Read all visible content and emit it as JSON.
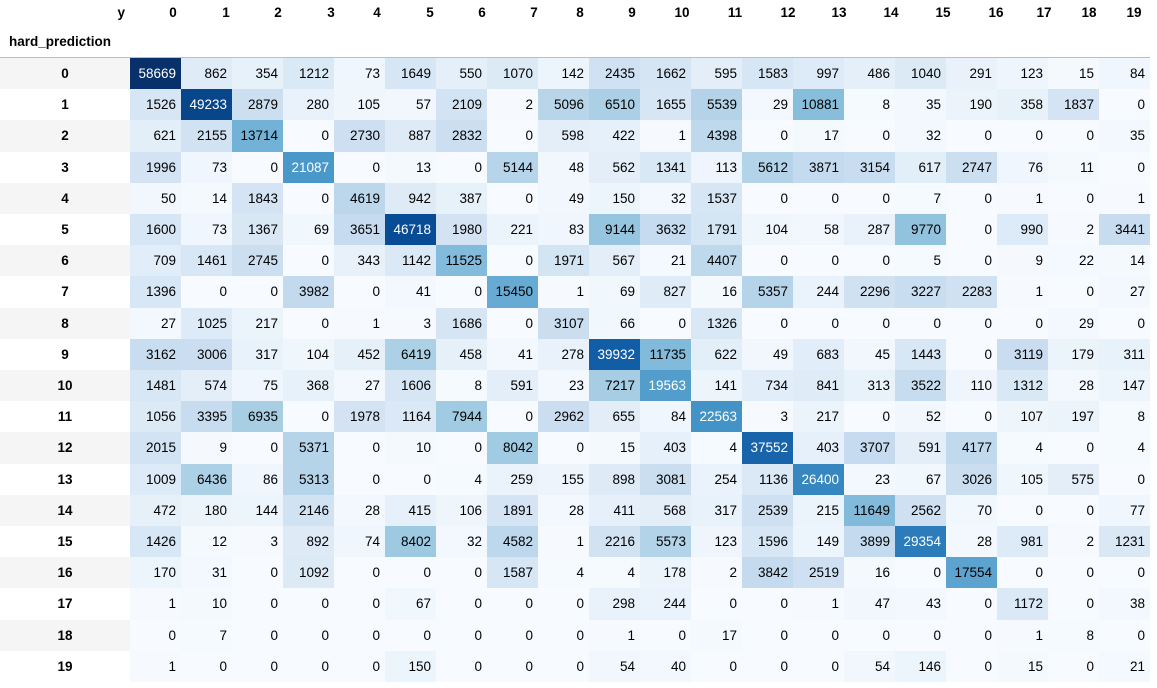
{
  "chart_data": {
    "type": "heatmap",
    "column_axis_name": "y",
    "row_axis_name": "hard_prediction",
    "columns": [
      "0",
      "1",
      "2",
      "3",
      "4",
      "5",
      "6",
      "7",
      "8",
      "9",
      "10",
      "11",
      "12",
      "13",
      "14",
      "15",
      "16",
      "17",
      "18",
      "19"
    ],
    "rows": [
      "0",
      "1",
      "2",
      "3",
      "4",
      "5",
      "6",
      "7",
      "8",
      "9",
      "10",
      "11",
      "12",
      "13",
      "14",
      "15",
      "16",
      "17",
      "18",
      "19"
    ],
    "colormap": "Blues",
    "values": [
      [
        58669,
        862,
        354,
        1212,
        73,
        1649,
        550,
        1070,
        142,
        2435,
        1662,
        595,
        1583,
        997,
        486,
        1040,
        291,
        123,
        15,
        84
      ],
      [
        1526,
        49233,
        2879,
        280,
        105,
        57,
        2109,
        2,
        5096,
        6510,
        1655,
        5539,
        29,
        10881,
        8,
        35,
        190,
        358,
        1837,
        0
      ],
      [
        621,
        2155,
        13714,
        0,
        2730,
        887,
        2832,
        0,
        598,
        422,
        1,
        4398,
        0,
        17,
        0,
        32,
        0,
        0,
        0,
        35
      ],
      [
        1996,
        73,
        0,
        21087,
        0,
        13,
        0,
        5144,
        48,
        562,
        1341,
        113,
        5612,
        3871,
        3154,
        617,
        2747,
        76,
        11,
        0
      ],
      [
        50,
        14,
        1843,
        0,
        4619,
        942,
        387,
        0,
        49,
        150,
        32,
        1537,
        0,
        0,
        0,
        7,
        0,
        1,
        0,
        1
      ],
      [
        1600,
        73,
        1367,
        69,
        3651,
        46718,
        1980,
        221,
        83,
        9144,
        3632,
        1791,
        104,
        58,
        287,
        9770,
        0,
        990,
        2,
        3441
      ],
      [
        709,
        1461,
        2745,
        0,
        343,
        1142,
        11525,
        0,
        1971,
        567,
        21,
        4407,
        0,
        0,
        0,
        5,
        0,
        9,
        22,
        14
      ],
      [
        1396,
        0,
        0,
        3982,
        0,
        41,
        0,
        15450,
        1,
        69,
        827,
        16,
        5357,
        244,
        2296,
        3227,
        2283,
        1,
        0,
        27
      ],
      [
        27,
        1025,
        217,
        0,
        1,
        3,
        1686,
        0,
        3107,
        66,
        0,
        1326,
        0,
        0,
        0,
        0,
        0,
        0,
        29,
        0
      ],
      [
        3162,
        3006,
        317,
        104,
        452,
        6419,
        458,
        41,
        278,
        39932,
        11735,
        622,
        49,
        683,
        45,
        1443,
        0,
        3119,
        179,
        311
      ],
      [
        1481,
        574,
        75,
        368,
        27,
        1606,
        8,
        591,
        23,
        7217,
        19563,
        141,
        734,
        841,
        313,
        3522,
        110,
        1312,
        28,
        147
      ],
      [
        1056,
        3395,
        6935,
        0,
        1978,
        1164,
        7944,
        0,
        2962,
        655,
        84,
        22563,
        3,
        217,
        0,
        52,
        0,
        107,
        197,
        8
      ],
      [
        2015,
        9,
        0,
        5371,
        0,
        10,
        0,
        8042,
        0,
        15,
        403,
        4,
        37552,
        403,
        3707,
        591,
        4177,
        4,
        0,
        4
      ],
      [
        1009,
        6436,
        86,
        5313,
        0,
        0,
        4,
        259,
        155,
        898,
        3081,
        254,
        1136,
        26400,
        23,
        67,
        3026,
        105,
        575,
        0
      ],
      [
        472,
        180,
        144,
        2146,
        28,
        415,
        106,
        1891,
        28,
        411,
        568,
        317,
        2539,
        215,
        11649,
        2562,
        70,
        0,
        0,
        77
      ],
      [
        1426,
        12,
        3,
        892,
        74,
        8402,
        32,
        4582,
        1,
        2216,
        5573,
        123,
        1596,
        149,
        3899,
        29354,
        28,
        981,
        2,
        1231
      ],
      [
        170,
        31,
        0,
        1092,
        0,
        0,
        0,
        1587,
        4,
        4,
        178,
        2,
        3842,
        2519,
        16,
        0,
        17554,
        0,
        0,
        0
      ],
      [
        1,
        10,
        0,
        0,
        0,
        67,
        0,
        0,
        0,
        298,
        244,
        0,
        0,
        1,
        47,
        43,
        0,
        1172,
        0,
        38
      ],
      [
        0,
        7,
        0,
        0,
        0,
        0,
        0,
        0,
        0,
        1,
        0,
        17,
        0,
        0,
        0,
        0,
        0,
        1,
        8,
        0
      ],
      [
        1,
        0,
        0,
        0,
        0,
        150,
        0,
        0,
        0,
        54,
        40,
        0,
        0,
        0,
        54,
        146,
        0,
        15,
        0,
        21
      ]
    ]
  }
}
